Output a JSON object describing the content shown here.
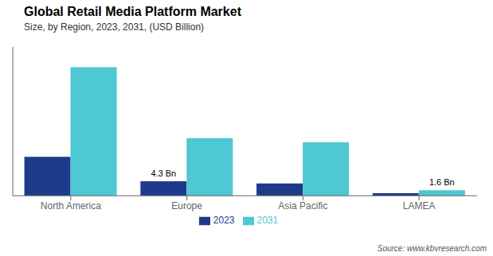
{
  "chart_data": {
    "type": "bar",
    "title": "Global Retail Media Platform Market",
    "subtitle": "Size, by Region, 2023, 2031, (USD Billion)",
    "source": "Source: www.kbvresearch.com",
    "categories": [
      "North America",
      "Europe",
      "Asia Pacific",
      "LAMEA"
    ],
    "series": [
      {
        "name": "2023",
        "color": "#1e3a8a",
        "values": [
          11.5,
          4.3,
          3.6,
          0.75
        ]
      },
      {
        "name": "2031",
        "color": "#4dc8d4",
        "values": [
          38.0,
          17.0,
          15.8,
          1.6
        ]
      }
    ],
    "ylim": [
      0,
      44
    ],
    "grid": false,
    "legend": "bottom",
    "tick_labels": "x",
    "annotations": [
      {
        "text": "4.3 Bn",
        "category": "Europe",
        "series": "2023"
      },
      {
        "text": "1.6 Bn",
        "category": "LAMEA",
        "series": "2031"
      }
    ]
  }
}
